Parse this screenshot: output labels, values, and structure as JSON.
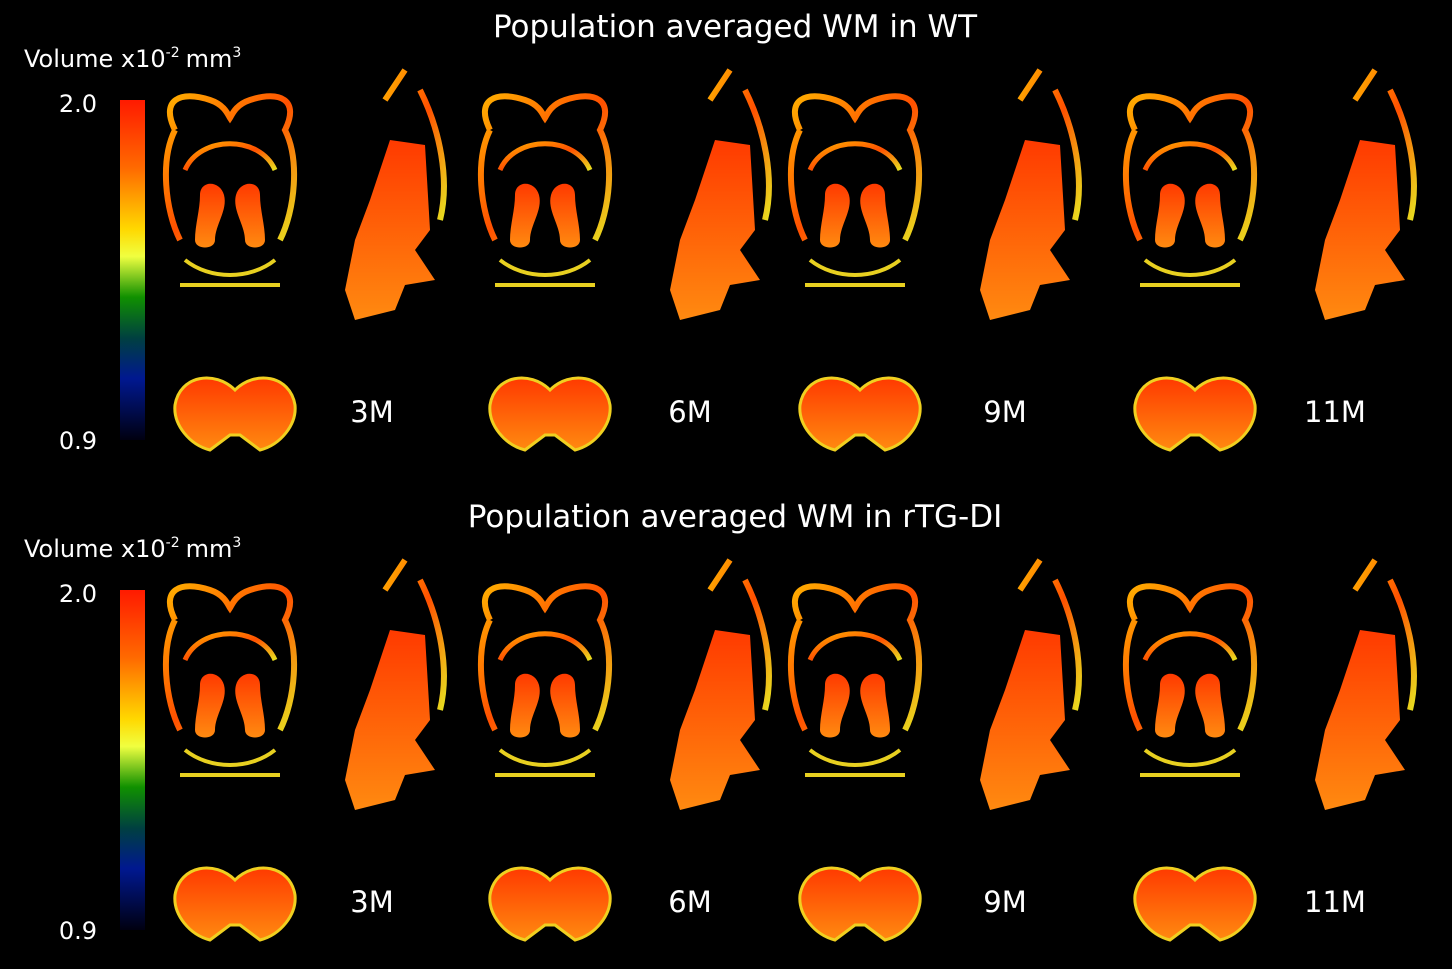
{
  "panels": [
    {
      "title": "Population averaged WM in WT",
      "colorbar": {
        "label": "Volume x10",
        "label_exp": "-2",
        "unit": "mm",
        "unit_exp": "3",
        "max": "2.0",
        "min": "0.9"
      },
      "timepoints": [
        "3M",
        "6M",
        "9M",
        "11M"
      ]
    },
    {
      "title": "Population averaged WM in rTG-DI",
      "colorbar": {
        "label": "Volume x10",
        "label_exp": "-2",
        "unit": "mm",
        "unit_exp": "3",
        "max": "2.0",
        "min": "0.9"
      },
      "timepoints": [
        "3M",
        "6M",
        "9M",
        "11M"
      ]
    }
  ]
}
